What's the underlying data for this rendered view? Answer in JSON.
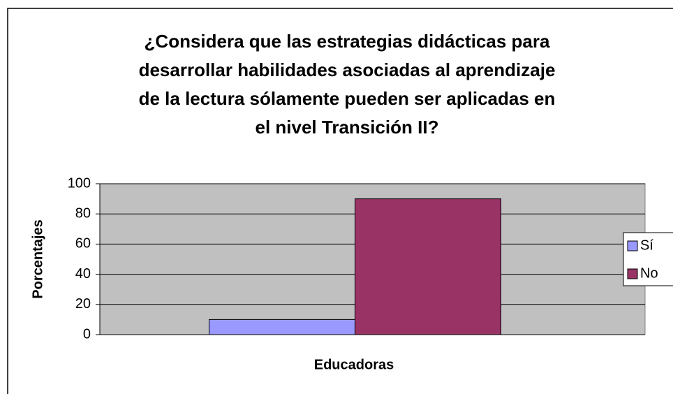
{
  "chart_data": {
    "type": "bar",
    "title": [
      "¿Considera que las estrategias didácticas para",
      "desarrollar habilidades asociadas al aprendizaje",
      "de la lectura sólamente pueden ser aplicadas en",
      "el nivel Transición II?"
    ],
    "xlabel": "Educadoras",
    "ylabel": "Porcentajes",
    "categories": [
      null
    ],
    "series": [
      {
        "name": "Sí",
        "color": "#9999ff",
        "values": [
          10
        ]
      },
      {
        "name": "No",
        "color": "#993366",
        "values": [
          90
        ]
      }
    ],
    "ylim": [
      0,
      100
    ],
    "yticks": [
      0,
      20,
      40,
      60,
      80,
      100
    ],
    "grid": true,
    "legend": "right"
  }
}
